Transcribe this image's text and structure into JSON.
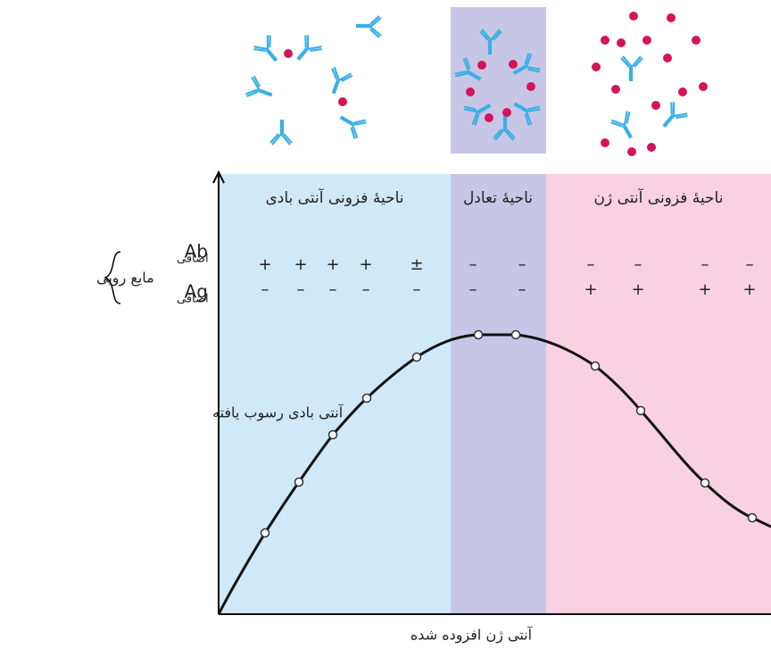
{
  "zones": [
    "ناحیهٔ فزونی آنتی بادی",
    "ناحیهٔ تعادل",
    "ناحیهٔ فزونی آنتی ژن"
  ],
  "supernatant": {
    "label": "مایع رویی",
    "rows": [
      {
        "name": "Ab",
        "note": "اضافی",
        "signs": [
          "+",
          "+",
          "+",
          "+",
          "±",
          "–",
          "–",
          "–",
          "–",
          "–",
          "–"
        ]
      },
      {
        "name": "Ag",
        "note": "اضافی",
        "signs": [
          "–",
          "–",
          "–",
          "–",
          "–",
          "–",
          "–",
          "+",
          "+",
          "+",
          "+"
        ]
      }
    ]
  },
  "y_axis_label": "آنتی بادی رسوب یافته",
  "x_axis_label": "آنتی ژن افزوده شده"
}
